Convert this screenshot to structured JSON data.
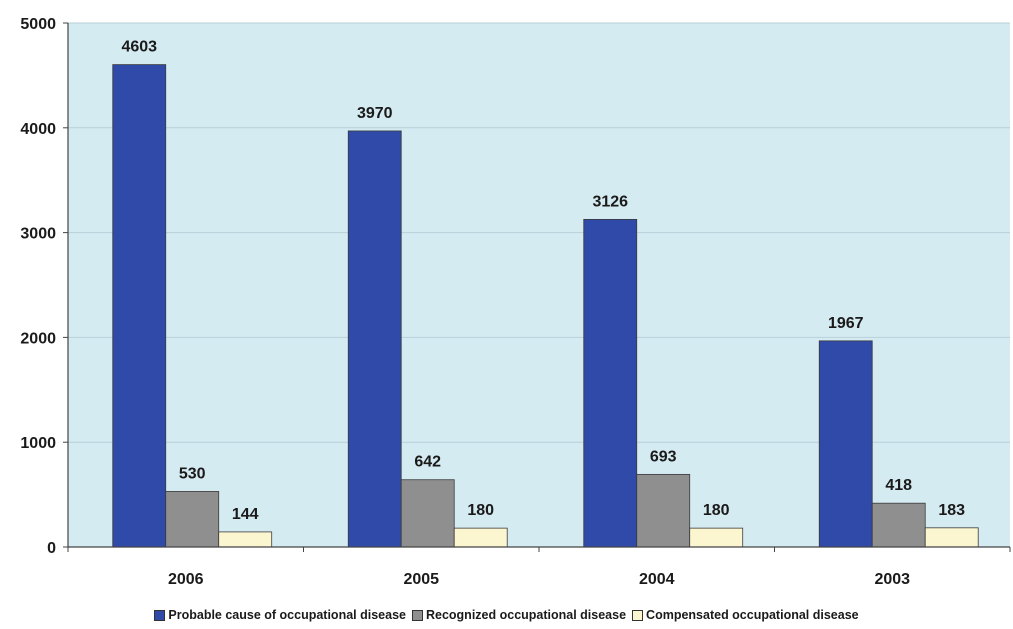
{
  "chart_data": {
    "type": "bar",
    "categories": [
      "2006",
      "2005",
      "2004",
      "2003"
    ],
    "series": [
      {
        "name": "Probable cause of occupational disease",
        "values": [
          4603,
          3970,
          3126,
          1967
        ],
        "color": "#2f4aa8"
      },
      {
        "name": "Recognized occupational disease",
        "values": [
          530,
          642,
          693,
          418
        ],
        "color": "#8f8f8f"
      },
      {
        "name": "Compensated occupational disease",
        "values": [
          144,
          180,
          180,
          183
        ],
        "color": "#fbf6cf"
      }
    ],
    "ylim": [
      0,
      5000
    ],
    "yticks": [
      0,
      1000,
      2000,
      3000,
      4000,
      5000
    ],
    "grid": true,
    "legend": "bottom",
    "plot_background": "#d5ebf2",
    "grid_color": "#b8cfd8"
  }
}
